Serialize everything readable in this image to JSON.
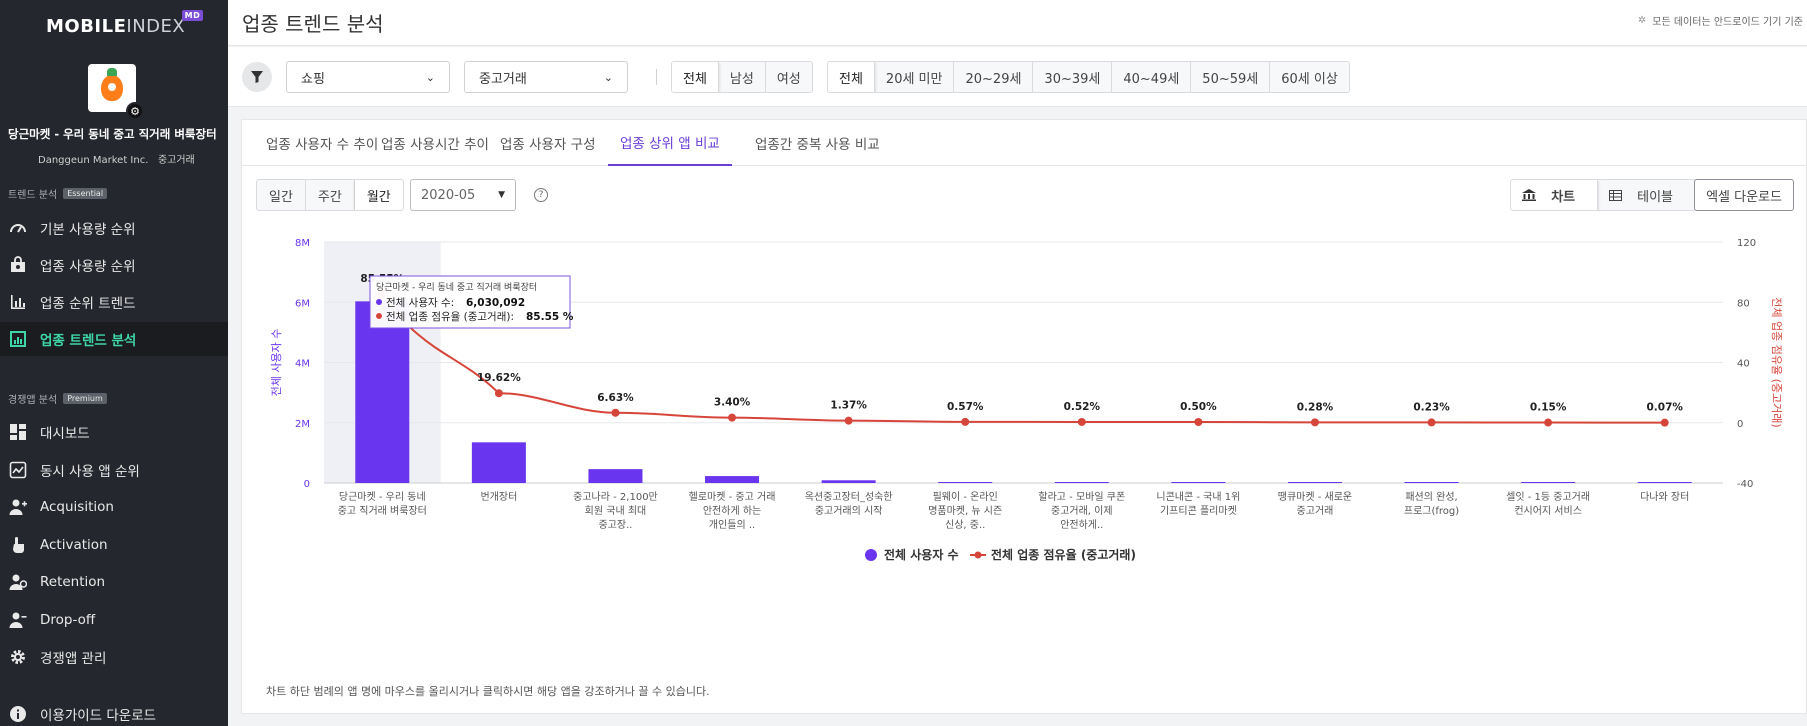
{
  "sidebar": {
    "logo_bold": "MOBILE",
    "logo_light": "INDEX",
    "logo_badge": "MD",
    "app_name": "당근마켓 - 우리 동네 중고 직거래 벼룩장터",
    "app_company": "Danggeun Market Inc.",
    "app_category": "중고거래",
    "section1": {
      "label": "트렌드 분석",
      "tag": "Essential"
    },
    "section1_items": [
      {
        "label": "기본 사용량 순위",
        "icon": "gauge-icon"
      },
      {
        "label": "업종 사용량 순위",
        "icon": "bag-icon"
      },
      {
        "label": "업종 순위 트렌드",
        "icon": "bar-chart-icon"
      },
      {
        "label": "업종 트렌드 분석",
        "icon": "trend-chart-icon"
      }
    ],
    "section2": {
      "label": "경쟁앱 분석",
      "tag": "Premium"
    },
    "section2_items": [
      {
        "label": "대시보드",
        "icon": "dashboard-icon"
      },
      {
        "label": "동시 사용 앱 순위",
        "icon": "line-chart-icon"
      },
      {
        "label": "Acquisition",
        "icon": "user-plus-icon"
      },
      {
        "label": "Activation",
        "icon": "hand-pointer-icon"
      },
      {
        "label": "Retention",
        "icon": "user-cycle-icon"
      },
      {
        "label": "Drop-off",
        "icon": "user-minus-icon"
      },
      {
        "label": "경쟁앱 관리",
        "icon": "gear-icon"
      }
    ],
    "guide": "이용가이드 다운로드"
  },
  "header": {
    "title": "업종 트렌드 분석",
    "note": "모든 데이터는 안드로이드 기기 기준"
  },
  "filters": {
    "category": "쇼핑",
    "subcategory": "중고거래",
    "gender": [
      "전체",
      "남성",
      "여성"
    ],
    "gender_selected": 0,
    "age": [
      "전체",
      "20세 미만",
      "20~29세",
      "30~39세",
      "40~49세",
      "50~59세",
      "60세 이상"
    ],
    "age_selected": 0
  },
  "tabs": [
    "업종 사용자 수 추이",
    "업종 사용시간 추이",
    "업종 사용자 구성",
    "업종 상위 앱 비교",
    "업종간 중복 사용 비교"
  ],
  "tab_selected": 3,
  "controls": {
    "periods": [
      "일간",
      "주간",
      "월간"
    ],
    "period_selected": 2,
    "date": "2020-05",
    "help": "?",
    "view_chart": "차트",
    "view_table": "테이블",
    "excel": "엑셀 다운로드"
  },
  "chart_data": {
    "type": "bar+line",
    "y_left": {
      "label": "전체 사용자 수",
      "ticks": [
        "0",
        "2M",
        "4M",
        "6M",
        "8M"
      ],
      "range": [
        0,
        8000000
      ]
    },
    "y_right": {
      "label": "전체 업종 점유율 (중고거래)",
      "ticks": [
        "-40",
        "0",
        "40",
        "80",
        "120"
      ],
      "range": [
        -40,
        120
      ]
    },
    "categories": [
      [
        "당근마켓 - 우리 동네",
        "중고 직거래 벼룩장터"
      ],
      [
        "번개장터"
      ],
      [
        "중고나라 - 2,100만",
        "회원 국내 최대",
        "중고장.."
      ],
      [
        "헬로마켓 - 중고 거래",
        "안전하게 하는",
        "개인들의 .."
      ],
      [
        "옥션중고장터_성숙한",
        "중고거래의 시작"
      ],
      [
        "필웨이 - 온라인",
        "명품마켓, 뉴 시즌",
        "신상, 중.."
      ],
      [
        "할라고 - 모바일 쿠폰",
        "중고거래, 이제",
        "안전하게.."
      ],
      [
        "니콘내콘 - 국내 1위",
        "기프티콘 플리마켓"
      ],
      [
        "땡큐마켓 - 새로운",
        "중고거래"
      ],
      [
        "패션의 완성,",
        "프로그(frog)"
      ],
      [
        "셀잇 - 1등 중고거래",
        "컨시어지 서비스"
      ],
      [
        "다나와 장터"
      ]
    ],
    "series": [
      {
        "name": "전체 사용자 수",
        "type": "bar",
        "color": "#6a35ee",
        "values": [
          6030092,
          1350000,
          460000,
          230000,
          90000,
          25000,
          23000,
          22000,
          12000,
          10000,
          7000,
          3000
        ]
      },
      {
        "name": "전체 업종 점유율 (중고거래)",
        "type": "line",
        "color": "#d6453a",
        "values": [
          85.55,
          19.62,
          6.63,
          3.4,
          1.37,
          0.57,
          0.52,
          0.5,
          0.28,
          0.23,
          0.15,
          0.07
        ],
        "labels": [
          "85.55%",
          "19.62%",
          "6.63%",
          "3.40%",
          "1.37%",
          "0.57%",
          "0.52%",
          "0.50%",
          "0.28%",
          "0.23%",
          "0.15%",
          "0.07%"
        ]
      }
    ],
    "tooltip": {
      "title": "당근마켓 - 우리 동네 중고 직거래 벼룩장터",
      "row1_label": "전체 사용자 수:",
      "row1_value": "6,030,092",
      "row2_label": "전체 업종 점유율 (중고거래):",
      "row2_value": "85.55 %"
    },
    "legend": [
      "전체 사용자 수",
      "전체 업종 점유율 (중고거래)"
    ],
    "legend_position": "bottom",
    "grid": true
  },
  "footnote": "차트 하단 범례의 앱 명에 마우스를 올리시거나 클릭하시면 해당 앱을 강조하거나 끌 수 있습니다."
}
